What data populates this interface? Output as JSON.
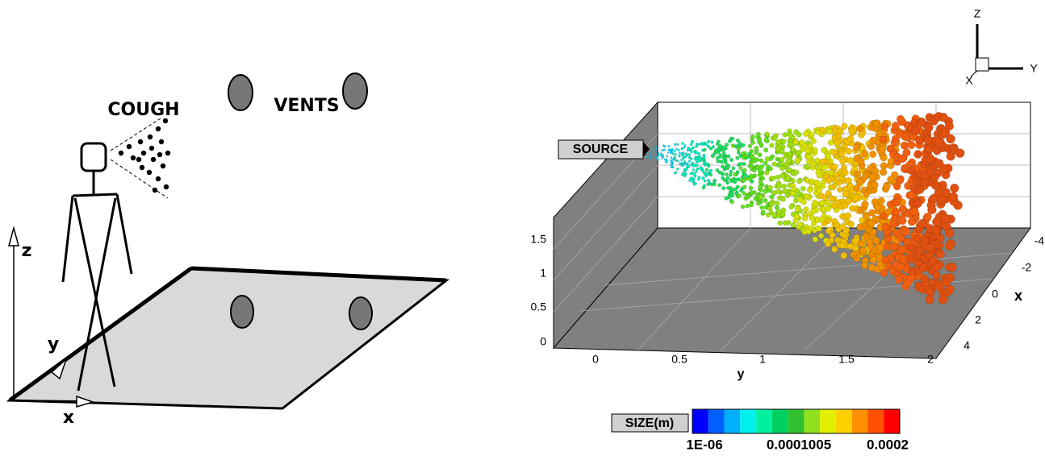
{
  "left_panel": {
    "cough": "COUGH",
    "vents": "VENTS",
    "z_label": "z",
    "y_label": "y",
    "x_label": "x"
  },
  "right_panel": {
    "source_label": "SOURCE",
    "vertical_ticks": [
      "0",
      "0.5",
      "1",
      "1.5"
    ],
    "y_ticks": [
      "0",
      "0.5",
      "1",
      "1.5",
      "2"
    ],
    "x_ticks": [
      "-4",
      "-2",
      "0",
      "2",
      "4"
    ],
    "y_axis_label": "y",
    "x_axis_label": "x",
    "orientation": {
      "z": "Z",
      "y": "Y",
      "x": "X"
    },
    "colorbar": {
      "title": "SIZE(m)",
      "labels": [
        "1E-06",
        "0.0001005",
        "0.0002"
      ]
    }
  }
}
